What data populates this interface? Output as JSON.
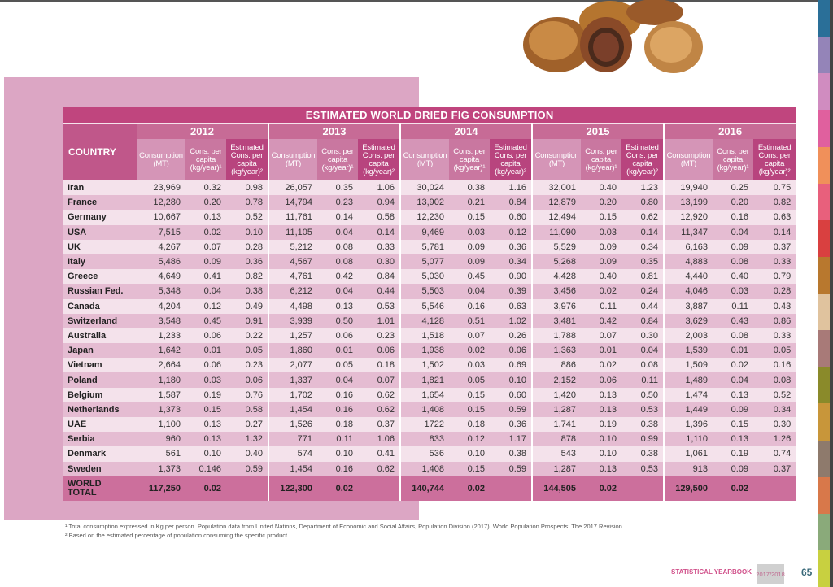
{
  "table": {
    "title": "ESTIMATED WORLD DRIED FIG CONSUMPTION",
    "country_header": "COUNTRY",
    "years": [
      "2012",
      "2013",
      "2014",
      "2015",
      "2016"
    ],
    "subheaders": [
      "Consumption (MT)",
      "Cons. per capita (kg/year)¹",
      "Estimated Cons. per capita (kg/year)²"
    ],
    "rows": [
      {
        "country": "Iran",
        "values": [
          "23,969",
          "0.32",
          "0.98",
          "26,057",
          "0.35",
          "1.06",
          "30,024",
          "0.38",
          "1.16",
          "32,001",
          "0.40",
          "1.23",
          "19,940",
          "0.25",
          "0.75"
        ]
      },
      {
        "country": "France",
        "values": [
          "12,280",
          "0.20",
          "0.78",
          "14,794",
          "0.23",
          "0.94",
          "13,902",
          "0.21",
          "0.84",
          "12,879",
          "0.20",
          "0.80",
          "13,199",
          "0.20",
          "0.82"
        ]
      },
      {
        "country": "Germany",
        "values": [
          "10,667",
          "0.13",
          "0.52",
          "11,761",
          "0.14",
          "0.58",
          "12,230",
          "0.15",
          "0.60",
          "12,494",
          "0.15",
          "0.62",
          "12,920",
          "0.16",
          "0.63"
        ]
      },
      {
        "country": "USA",
        "values": [
          "7,515",
          "0.02",
          "0.10",
          "11,105",
          "0.04",
          "0.14",
          "9,469",
          "0.03",
          "0.12",
          "11,090",
          "0.03",
          "0.14",
          "11,347",
          "0.04",
          "0.14"
        ]
      },
      {
        "country": "UK",
        "values": [
          "4,267",
          "0.07",
          "0.28",
          "5,212",
          "0.08",
          "0.33",
          "5,781",
          "0.09",
          "0.36",
          "5,529",
          "0.09",
          "0.34",
          "6,163",
          "0.09",
          "0.37"
        ]
      },
      {
        "country": "Italy",
        "values": [
          "5,486",
          "0.09",
          "0.36",
          "4,567",
          "0.08",
          "0.30",
          "5,077",
          "0.09",
          "0.34",
          "5,268",
          "0.09",
          "0.35",
          "4,883",
          "0.08",
          "0.33"
        ]
      },
      {
        "country": "Greece",
        "values": [
          "4,649",
          "0.41",
          "0.82",
          "4,761",
          "0.42",
          "0.84",
          "5,030",
          "0.45",
          "0.90",
          "4,428",
          "0.40",
          "0.81",
          "4,440",
          "0.40",
          "0.79"
        ]
      },
      {
        "country": "Russian Fed.",
        "values": [
          "5,348",
          "0.04",
          "0.38",
          "6,212",
          "0.04",
          "0.44",
          "5,503",
          "0.04",
          "0.39",
          "3,456",
          "0.02",
          "0.24",
          "4,046",
          "0.03",
          "0.28"
        ]
      },
      {
        "country": "Canada",
        "values": [
          "4,204",
          "0.12",
          "0.49",
          "4,498",
          "0.13",
          "0.53",
          "5,546",
          "0.16",
          "0.63",
          "3,976",
          "0.11",
          "0.44",
          "3,887",
          "0.11",
          "0.43"
        ]
      },
      {
        "country": "Switzerland",
        "values": [
          "3,548",
          "0.45",
          "0.91",
          "3,939",
          "0.50",
          "1.01",
          "4,128",
          "0.51",
          "1.02",
          "3,481",
          "0.42",
          "0.84",
          "3,629",
          "0.43",
          "0.86"
        ]
      },
      {
        "country": "Australia",
        "values": [
          "1,233",
          "0.06",
          "0.22",
          "1,257",
          "0.06",
          "0.23",
          "1,518",
          "0.07",
          "0.26",
          "1,788",
          "0.07",
          "0.30",
          "2,003",
          "0.08",
          "0.33"
        ]
      },
      {
        "country": "Japan",
        "values": [
          "1,642",
          "0.01",
          "0.05",
          "1,860",
          "0.01",
          "0.06",
          "1,938",
          "0.02",
          "0.06",
          "1,363",
          "0.01",
          "0.04",
          "1,539",
          "0.01",
          "0.05"
        ]
      },
      {
        "country": "Vietnam",
        "values": [
          "2,664",
          "0.06",
          "0.23",
          "2,077",
          "0.05",
          "0.18",
          "1,502",
          "0.03",
          "0.69",
          "886",
          "0.02",
          "0.08",
          "1,509",
          "0.02",
          "0.16"
        ]
      },
      {
        "country": "Poland",
        "values": [
          "1,180",
          "0.03",
          "0.06",
          "1,337",
          "0.04",
          "0.07",
          "1,821",
          "0.05",
          "0.10",
          "2,152",
          "0.06",
          "0.11",
          "1,489",
          "0.04",
          "0.08"
        ]
      },
      {
        "country": "Belgium",
        "values": [
          "1,587",
          "0.19",
          "0.76",
          "1,702",
          "0.16",
          "0.62",
          "1,654",
          "0.15",
          "0.60",
          "1,420",
          "0.13",
          "0.50",
          "1,474",
          "0.13",
          "0.52"
        ]
      },
      {
        "country": "Netherlands",
        "values": [
          "1,373",
          "0.15",
          "0.58",
          "1,454",
          "0.16",
          "0.62",
          "1,408",
          "0.15",
          "0.59",
          "1,287",
          "0.13",
          "0.53",
          "1,449",
          "0.09",
          "0.34"
        ]
      },
      {
        "country": "UAE",
        "values": [
          "1,100",
          "0.13",
          "0.27",
          "1,526",
          "0.18",
          "0.37",
          "1722",
          "0.18",
          "0.36",
          "1,741",
          "0.19",
          "0.38",
          "1,396",
          "0.15",
          "0.30"
        ]
      },
      {
        "country": "Serbia",
        "values": [
          "960",
          "0.13",
          "1.32",
          "771",
          "0.11",
          "1.06",
          "833",
          "0.12",
          "1.17",
          "878",
          "0.10",
          "0.99",
          "1,110",
          "0.13",
          "1.26"
        ]
      },
      {
        "country": "Denmark",
        "values": [
          "561",
          "0.10",
          "0.40",
          "574",
          "0.10",
          "0.41",
          "536",
          "0.10",
          "0.38",
          "543",
          "0.10",
          "0.38",
          "1,061",
          "0.19",
          "0.74"
        ]
      },
      {
        "country": "Sweden",
        "values": [
          "1,373",
          "0.146",
          "0.59",
          "1,454",
          "0.16",
          "0.62",
          "1,408",
          "0.15",
          "0.59",
          "1,287",
          "0.13",
          "0.53",
          "913",
          "0.09",
          "0.37"
        ]
      }
    ],
    "total": {
      "label_line1": "WORLD",
      "label_line2": "TOTAL",
      "values": [
        "117,250",
        "0.02",
        "",
        "122,300",
        "0.02",
        "",
        "140,744",
        "0.02",
        "",
        "144,505",
        "0.02",
        "",
        "129,500",
        "0.02",
        ""
      ]
    }
  },
  "footnotes": [
    "¹ Total consumption expressed in Kg per person. Population data from United Nations, Department of Economic and Social Affairs, Population Division (2017). World Population Prospects: The 2017 Revision.",
    "² Based on the estimated percentage of population consuming the specific product."
  ],
  "footer": {
    "publication": "STATISTICAL YEARBOOK",
    "edition": "2017/2018",
    "page_number": "65"
  },
  "side_tab_colors": [
    "#2a6f98",
    "#9484b8",
    "#d08cc0",
    "#e0609e",
    "#f0905a",
    "#e8607c",
    "#d94040",
    "#b8782e",
    "#e0c39e",
    "#a87a78",
    "#8a8a2a",
    "#c8963a",
    "#8e7a6c",
    "#d8784a",
    "#8aaa7a",
    "#c8d040"
  ]
}
